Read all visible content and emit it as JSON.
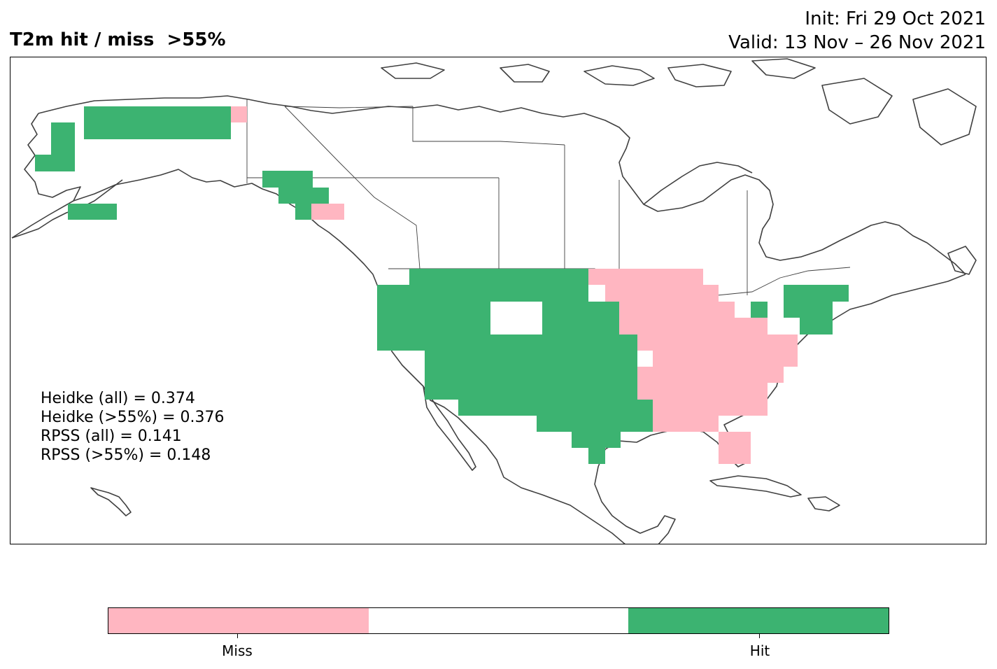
{
  "title": "T2m hit / miss  >55%",
  "init_line": "Init: Fri 29 Oct 2021",
  "valid_line": "Valid: 13 Nov – 26 Nov 2021",
  "stats": [
    "Heidke (all) = 0.374",
    "Heidke (>55%) = 0.376",
    "RPSS (all) = 0.141",
    "RPSS (>55%) = 0.148"
  ],
  "colors": {
    "hit": "#3cb371",
    "miss": "#ffb6c1",
    "none": "#ffffff",
    "coast": "#404040"
  },
  "legend": {
    "miss_label": "Miss",
    "hit_label": "Hit"
  },
  "regions": {
    "alaska": "hit",
    "alaska_northeast_corner": "miss",
    "southeast_alaska_panhandle": "hit",
    "southern_panhandle_patch": "miss",
    "western_united_states": "hit",
    "northern_plains": "hit",
    "southern_plains_and_texas": "hit",
    "upper_midwest_and_great_lakes": "miss",
    "ohio_valley_and_southeast": "miss",
    "florida": "miss",
    "northeast_united_states": "hit"
  }
}
